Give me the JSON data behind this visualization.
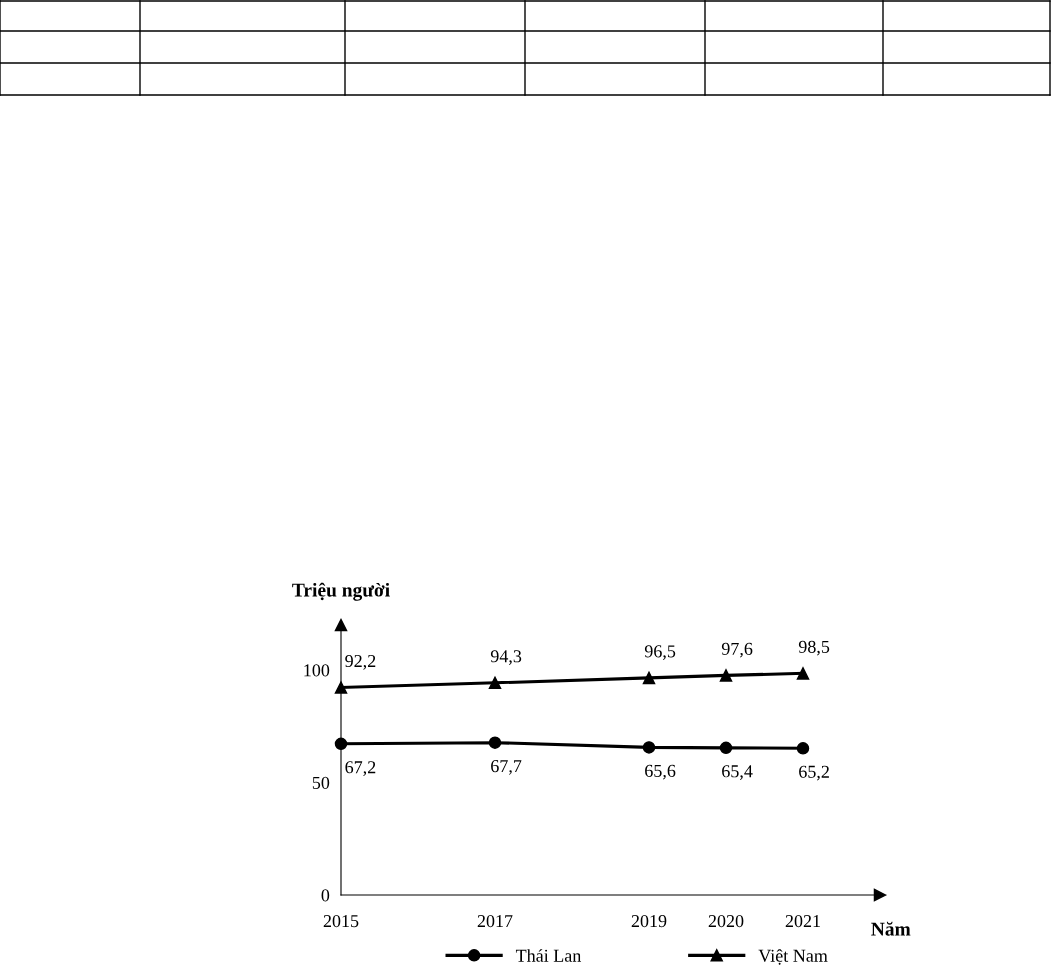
{
  "chart_data": {
    "type": "line",
    "ylabel": "Triệu người",
    "xlabel": "Năm",
    "x": [
      2015,
      2017,
      2019,
      2020,
      2021
    ],
    "series": [
      {
        "name": "Thái Lan",
        "color": "#000000",
        "marker": "circle",
        "values": [
          67.2,
          67.7,
          65.6,
          65.4,
          65.2
        ],
        "value_labels": [
          "67,2",
          "67,7",
          "65,6",
          "65,4",
          "65,2"
        ]
      },
      {
        "name": "Việt Nam",
        "color": "#000000",
        "marker": "triangle",
        "values": [
          92.2,
          94.3,
          96.5,
          97.6,
          98.5
        ],
        "value_labels": [
          "92,2",
          "94,3",
          "96,5",
          "97,6",
          "98,5"
        ]
      }
    ],
    "xlim": [
      2015,
      2022
    ],
    "ylim": [
      0,
      120
    ],
    "xticks": [
      2015,
      2017,
      2019,
      2020,
      2021
    ],
    "yticks": [
      0,
      50,
      100
    ],
    "grid": false,
    "legend": "bottom",
    "line_style": "solid"
  }
}
